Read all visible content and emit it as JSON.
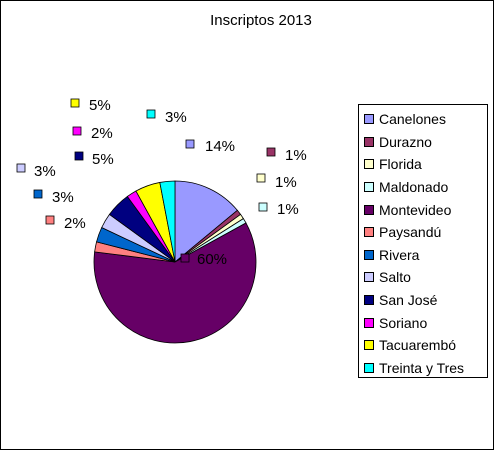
{
  "chart_data": {
    "type": "pie",
    "title": "Inscriptos  2013",
    "legend_position": "right",
    "slices": [
      {
        "name": "Canelones",
        "value": 14,
        "label": "14%",
        "color": "#9999FF"
      },
      {
        "name": "Durazno",
        "value": 1,
        "label": "1%",
        "color": "#993366"
      },
      {
        "name": "Florida",
        "value": 1,
        "label": "1%",
        "color": "#FFFFCC"
      },
      {
        "name": "Maldonado",
        "value": 1,
        "label": "1%",
        "color": "#CCFFFF"
      },
      {
        "name": "Montevideo",
        "value": 60,
        "label": "60%",
        "color": "#660066"
      },
      {
        "name": "Paysandú",
        "value": 2,
        "label": "2%",
        "color": "#FF8080"
      },
      {
        "name": "Rivera",
        "value": 3,
        "label": "3%",
        "color": "#0066CC"
      },
      {
        "name": "Salto",
        "value": 3,
        "label": "3%",
        "color": "#CCCCFF"
      },
      {
        "name": "San José",
        "value": 5,
        "label": "5%",
        "color": "#000080"
      },
      {
        "name": "Soriano",
        "value": 2,
        "label": "2%",
        "color": "#FF00FF"
      },
      {
        "name": "Tacuarembó",
        "value": 5,
        "label": "5%",
        "color": "#FFFF00"
      },
      {
        "name": "Treinta y Tres",
        "value": 3,
        "label": "3%",
        "color": "#00FFFF"
      }
    ]
  }
}
